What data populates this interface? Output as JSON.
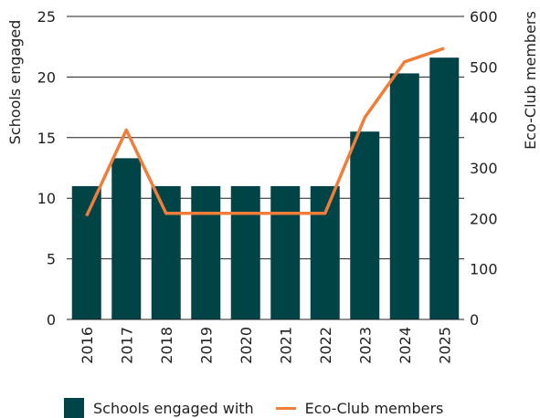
{
  "chart_data": {
    "type": "bar",
    "categories": [
      "2016",
      "2017",
      "2018",
      "2019",
      "2020",
      "2021",
      "2022",
      "2023",
      "2024",
      "2025"
    ],
    "series": [
      {
        "name": "Schools engaged with",
        "type": "bar",
        "axis": "left",
        "color": "#004448",
        "values": [
          11,
          13.3,
          11,
          11,
          11,
          11,
          11,
          15.5,
          20.3,
          21.6
        ]
      },
      {
        "name": "Eco-Club members",
        "type": "line",
        "axis": "right",
        "color": "#f07d3a",
        "values": [
          205,
          375,
          210,
          210,
          210,
          210,
          210,
          400,
          510,
          537
        ]
      }
    ],
    "ylabel": "Schools engaged",
    "y2label": "Eco-Club members",
    "ylim": [
      0,
      25
    ],
    "y2lim": [
      0,
      600
    ],
    "yticks": [
      "0",
      "5",
      "10",
      "15",
      "20",
      "25"
    ],
    "y2ticks": [
      "0",
      "100",
      "200",
      "300",
      "400",
      "500",
      "600"
    ],
    "grid": true,
    "legend_position": "bottom"
  }
}
